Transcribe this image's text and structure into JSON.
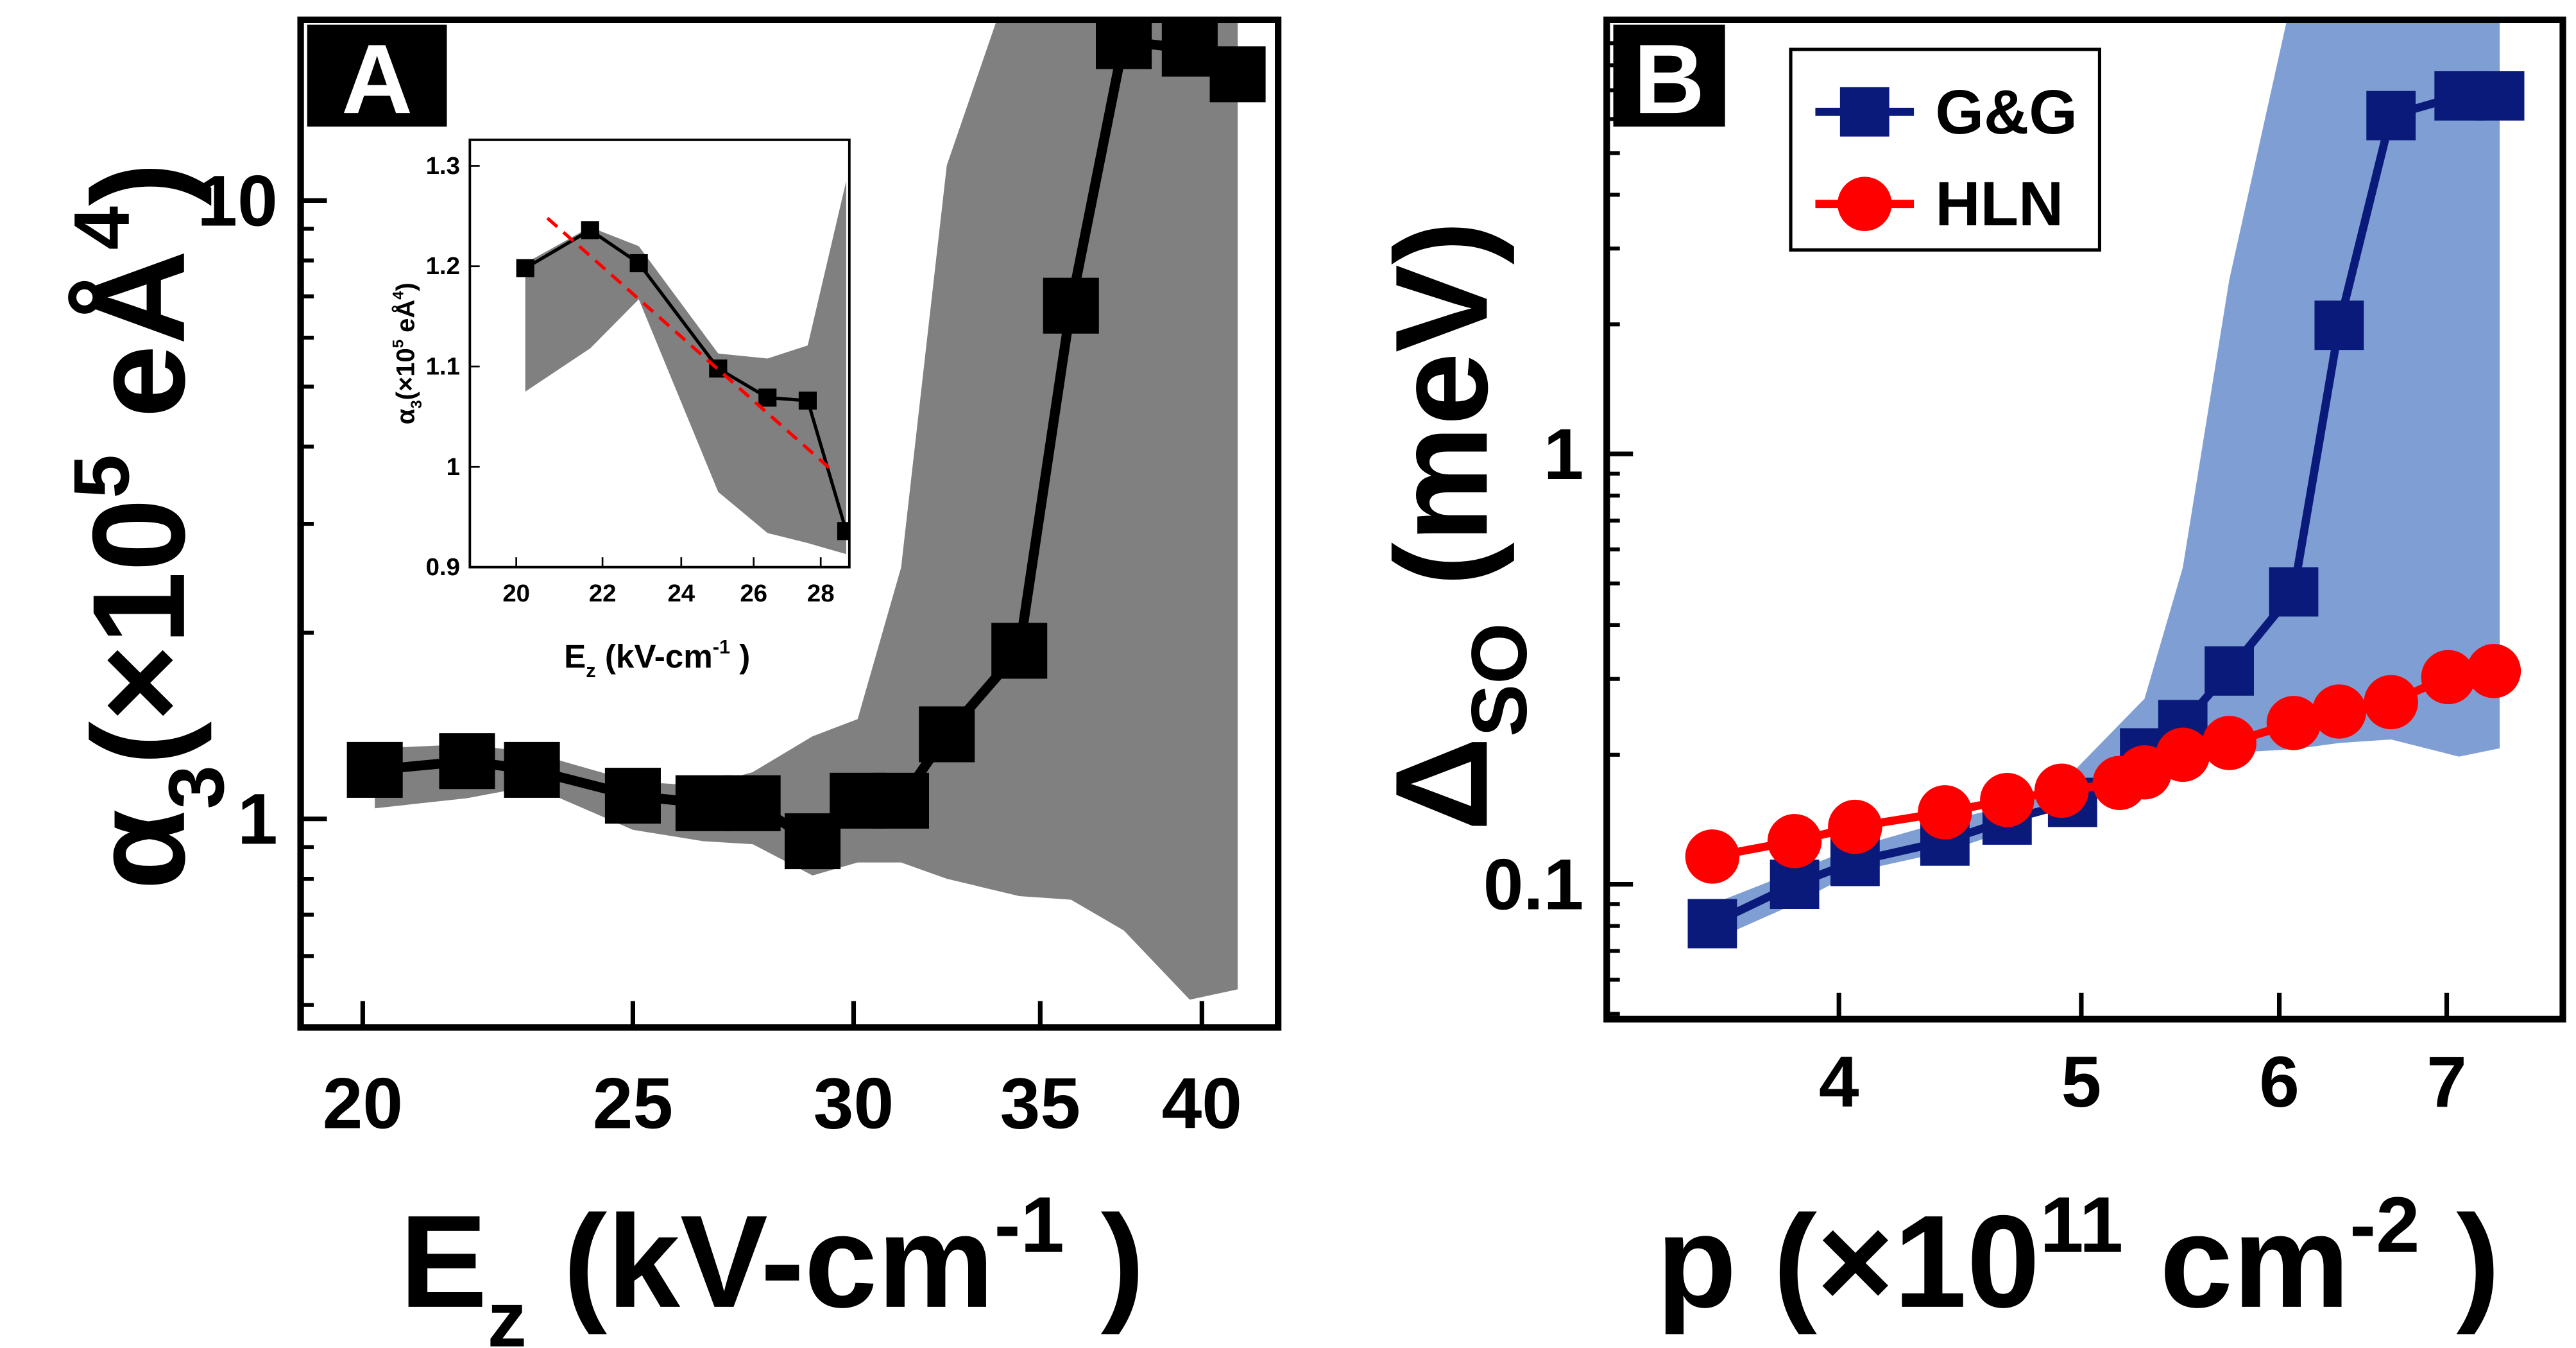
{
  "chart_data": [
    {
      "type": "line",
      "panel_label": "A",
      "xlabel": [
        {
          "text": "E",
          "sub": "z"
        },
        {
          "text": " (kV-cm",
          "sup": "-1"
        },
        {
          "text": " )"
        }
      ],
      "ylabel": [
        {
          "text": "α",
          "sub": "3"
        },
        {
          "text": "(×10",
          "sup": "5"
        },
        {
          "text": " eÅ",
          "sup": "4"
        },
        {
          "text": ")"
        }
      ],
      "xscale": "log",
      "yscale": "log",
      "xlim": [
        19,
        42.6
      ],
      "ylim": [
        0.46,
        19.6
      ],
      "xticks": [
        20,
        25,
        30,
        35,
        40
      ],
      "yticks": [
        1,
        10
      ],
      "yticks_minor": [
        0.5,
        0.6,
        0.7,
        0.8,
        0.9,
        2,
        3,
        4,
        5,
        6,
        7,
        8,
        9
      ],
      "band": {
        "color": "#808080",
        "x": [
          20.2,
          21.8,
          23.0,
          25.0,
          26.5,
          27.6,
          29.0,
          30.1,
          31.2,
          32.4,
          34.4,
          35.9,
          37.5,
          39.6,
          41.2
        ],
        "upper": [
          1.3,
          1.32,
          1.28,
          1.15,
          1.13,
          1.19,
          1.36,
          1.45,
          2.55,
          11.4,
          25,
          25,
          25,
          25,
          25
        ],
        "lower": [
          1.04,
          1.08,
          1.13,
          0.96,
          0.92,
          0.91,
          0.81,
          0.85,
          0.85,
          0.8,
          0.75,
          0.74,
          0.66,
          0.51,
          0.53
        ]
      },
      "series": [
        {
          "color": "#000000",
          "marker": "square",
          "x": [
            20.2,
            21.8,
            23.0,
            25.0,
            26.5,
            27.6,
            29.0,
            30.1,
            31.2,
            32.4,
            34.4,
            35.9,
            37.5,
            39.6,
            41.2
          ],
          "values": [
            1.2,
            1.24,
            1.2,
            1.09,
            1.06,
            1.06,
            0.92,
            1.07,
            1.07,
            1.37,
            1.87,
            6.76,
            18.1,
            17.6,
            16.0
          ]
        }
      ]
    },
    {
      "type": "line",
      "inset": true,
      "xlabel": [
        {
          "text": "E",
          "sub": "z"
        },
        {
          "text": " (kV-cm",
          "sup": "-1"
        },
        {
          "text": " )"
        }
      ],
      "ylabel": [
        {
          "text": "α",
          "sub": "3"
        },
        {
          "text": "(×10",
          "sup": "5"
        },
        {
          "text": " eÅ",
          "sup": "4"
        },
        {
          "text": ")"
        }
      ],
      "xscale": "log",
      "yscale": "linear",
      "xlim": [
        19,
        28.9
      ],
      "ylim": [
        0.9,
        1.326
      ],
      "xticks": [
        20,
        22,
        24,
        26,
        28
      ],
      "yticks": [
        0.9,
        1,
        1.1,
        1.2,
        1.3
      ],
      "band": {
        "color": "#808080",
        "x": [
          20.2,
          21.7,
          22.9,
          25.0,
          26.4,
          27.6,
          28.8
        ],
        "upper": [
          1.203,
          1.239,
          1.22,
          1.113,
          1.108,
          1.121,
          1.285
        ],
        "lower": [
          1.075,
          1.118,
          1.167,
          0.975,
          0.934,
          0.924,
          0.913
        ]
      },
      "series": [
        {
          "color": "#000000",
          "marker": "square",
          "x": [
            20.2,
            21.7,
            22.9,
            25.0,
            26.4,
            27.6,
            28.8
          ],
          "values": [
            1.198,
            1.236,
            1.203,
            1.098,
            1.069,
            1.066,
            0.936
          ]
        },
        {
          "color": "#ff0000",
          "marker": "none",
          "dash": true,
          "x": [
            20.7,
            28.3
          ],
          "values": [
            1.248,
            0.998
          ]
        }
      ]
    },
    {
      "type": "line",
      "panel_label": "B",
      "xlabel": [
        {
          "text": "p (×10",
          "sup": "11"
        },
        {
          "text": " cm",
          "sup": "-2"
        },
        {
          "text": " )"
        }
      ],
      "ylabel": [
        {
          "text": "Δ",
          "sub": "SO"
        },
        {
          "text": " (meV)"
        }
      ],
      "xscale": "log",
      "yscale": "log",
      "xlim": [
        3.23,
        7.79
      ],
      "ylim": [
        0.0486,
        10.2
      ],
      "xticks": [
        4,
        5,
        6,
        7
      ],
      "yticks": [
        0.1,
        1
      ],
      "yticks_minor": [
        0.05,
        0.06,
        0.07,
        0.08,
        0.09,
        0.2,
        0.3,
        0.4,
        0.5,
        0.6,
        0.7,
        0.8,
        0.9,
        2,
        3,
        4,
        5,
        6,
        7,
        8,
        9
      ],
      "legend": "upper left",
      "band": {
        "color": "#7f9fd4",
        "x": [
          3.56,
          3.84,
          4.06,
          4.41,
          4.67,
          4.96,
          5.3,
          5.49,
          5.73,
          6.08,
          6.34,
          6.65,
          7.08,
          7.35
        ],
        "upper": [
          0.09,
          0.107,
          0.122,
          0.14,
          0.152,
          0.182,
          0.27,
          0.545,
          2.54,
          12,
          12,
          12,
          12,
          12
        ],
        "lower": [
          0.074,
          0.09,
          0.107,
          0.119,
          0.133,
          0.166,
          0.185,
          0.195,
          0.202,
          0.206,
          0.213,
          0.217,
          0.198,
          0.207
        ]
      },
      "series": [
        {
          "name": "G&G",
          "color": "#0a1a7a",
          "marker": "square",
          "x": [
            3.56,
            3.84,
            4.06,
            4.41,
            4.67,
            4.96,
            5.3,
            5.49,
            5.73,
            6.08,
            6.34,
            6.65,
            7.08,
            7.35
          ],
          "values": [
            0.081,
            0.1,
            0.113,
            0.126,
            0.141,
            0.155,
            0.202,
            0.235,
            0.313,
            0.478,
            1.99,
            6.11,
            6.79,
            6.79
          ]
        },
        {
          "name": "HLN",
          "color": "#ff0000",
          "marker": "circle",
          "x": [
            3.56,
            3.84,
            4.06,
            4.41,
            4.67,
            4.91,
            5.18,
            5.3,
            5.49,
            5.73,
            6.08,
            6.34,
            6.65,
            7.01,
            7.31
          ],
          "values": [
            0.116,
            0.126,
            0.136,
            0.147,
            0.157,
            0.165,
            0.172,
            0.182,
            0.2,
            0.213,
            0.237,
            0.252,
            0.265,
            0.303,
            0.313
          ]
        }
      ]
    }
  ]
}
